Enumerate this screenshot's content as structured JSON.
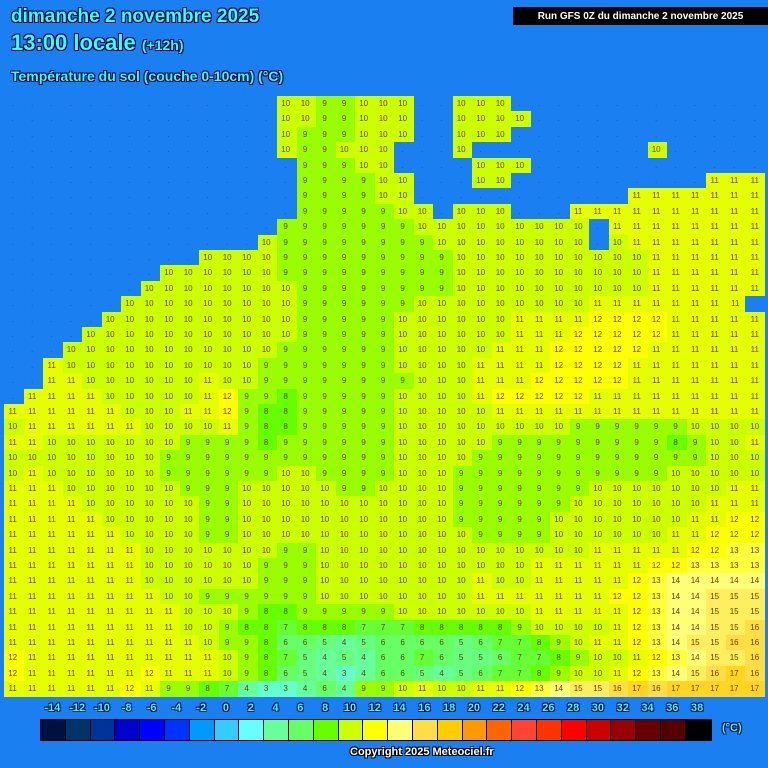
{
  "header": {
    "date": "dimanche 2 novembre 2025",
    "time": "13:00 locale",
    "lead": "(+12h)",
    "parameter": "Température du sol (couche 0-10cm) (°C)"
  },
  "run_label": "Run GFS 0Z du dimanche 2 novembre 2025",
  "legend": {
    "labels": [
      "-14",
      "-12",
      "-10",
      "-8",
      "-6",
      "-4",
      "-2",
      "0",
      "2",
      "4",
      "6",
      "8",
      "10",
      "12",
      "14",
      "16",
      "18",
      "20",
      "22",
      "24",
      "26",
      "28",
      "30",
      "32",
      "34",
      "36",
      "38"
    ],
    "colors": [
      "#001040",
      "#003366",
      "#003399",
      "#0000cc",
      "#0000ff",
      "#0033ff",
      "#0099ff",
      "#33ccff",
      "#66ffff",
      "#66ff99",
      "#66ff66",
      "#66ff00",
      "#ccff00",
      "#ffff00",
      "#ffff77",
      "#ffdd44",
      "#ffcc00",
      "#ff9900",
      "#ff6600",
      "#ff4433",
      "#ff3300",
      "#ff0000",
      "#cc0000",
      "#990000",
      "#660000",
      "#550000",
      "#000000"
    ],
    "unit": "(°C)"
  },
  "sea_color": "#1a7ff0",
  "copyright": "Copyright 2025 Meteociel.fr",
  "grid_rows": [
    ". . . . . . . . . . . . . . 10 10 9 9 10 10 10 . . 10 10 10 . . . . . . . . . . . . .",
    ". . . . . . . . . . . . . . 10 10 9 9 10 10 10 . . 10 10 10 10 . . . . . . . . . . . .",
    ". . . . . . . . . . . . . . 10 9 9 9 10 10 10 . . 10 10 10 . . . . . . . . . . . . .",
    ". . . . . . . . . . . . . . 10 9 9 10 10 10 . . . 10 . . . . . . . . . 10 . . . . .",
    ". . . . . . . . . . . . . . . 9 9 9 10 10 . . . . 10 10 10 . . . . . . . . . . . .",
    ". . . . . . . . . . . . . . . 9 9 9 9 10 10 . . . 10 10 . . . . . . . . . . 11 11 11",
    ". . . . . . . . . . . . . . . 9 9 9 9 10 10 . . . . . . . . . . . 11 11 11 11 11 11 11",
    ". . . . . . . . . . . . . . . 9 9 9 9 9 10 10 . 10 10 10 . . . 11 11 11 11 11 11 11 11 11 11",
    ". . . . . . . . . . . . . . 9 9 9 9 9 9 9 10 10 10 10 10 10 10 10 10 . 11 11 11 11 11 11 11 11",
    ". . . . . . . . . . . . . 10 9 9 9 9 9 9 9 9 10 10 10 10 10 10 10 10 . 10 11 11 11 11 11 11 11",
    ". . . . . . . . . . 10 10 10 10 9 9 9 9 9 9 9 9 9 10 10 10 10 10 10 10 10 10 10 11 11 11 11 11 11",
    ". . . . . . . . 10 10 10 10 10 10 9 9 9 9 9 9 9 9 9 10 10 10 10 10 10 10 10 10 10 11 11 11 11 11 11",
    ". . . . . . . 10 10 10 10 10 10 10 10 9 9 9 9 9 9 9 9 10 10 10 10 10 10 10 10 10 10 11 11 11 11 11 11",
    ". . . . . . 10 10 10 10 10 10 10 10 10 9 9 9 9 9 9 10 10 10 10 10 10 10 10 10 11 11 11 11 11 11 11 11",
    ". . . . . 10 10 10 10 10 10 10 10 10 10 9 9 9 9 9 10 10 10 10 10 10 11 11 11 11 12 12 12 12 11 11 11 11 11",
    ". . . . 10 10 10 10 10 10 10 10 10 10 10 9 9 9 9 9 10 10 10 10 10 10 11 11 11 12 12 12 12 12 11 11 11 11 11",
    ". . . 10 10 10 10 10 10 10 10 10 10 10 9 9 9 9 9 9 10 10 10 10 10 11 11 11 12 12 12 12 12 11 11 11 11 11 11",
    ". . 11 10 10 10 10 10 10 10 10 10 10 9 9 9 9 9 9 9 10 10 10 10 11 11 11 11 12 12 12 12 11 11 11 11 11 11 11",
    ". . 11 11 10 10 10 10 10 10 11 10 10 9 9 9 9 9 9 9 9 10 10 10 11 11 11 12 12 12 12 12 11 11 11 11 11 11 11",
    ". 11 11 11 11 10 10 10 10 10 11 12 9 9 8 9 9 9 9 9 10 10 10 10 11 12 12 12 12 12 11 11 11 11 11 11 11 11 11",
    "11 11 11 11 11 11 10 10 10 11 11 12 9 8 8 9 9 9 9 9 10 10 10 10 10 11 11 11 11 11 11 11 11 11 11 11 11 11 11",
    "10 11 11 11 11 11 11 10 10 10 10 11 9 8 8 9 9 9 9 9 10 10 10 10 10 10 10 10 10 9 9 9 9 9 9 10 10 10 10",
    "11 11 10 10 10 10 10 10 10 9 9 9 9 8 9 9 9 9 9 9 10 10 10 10 10 9 9 9 9 9 9 9 9 9 8 9 10 10 11",
    "10 10 10 10 10 10 10 10 9 9 9 9 9 9 9 9 9 9 9 9 10 10 10 10 9 9 9 9 9 9 9 9 9 9 9 9 10 10 10",
    "10 11 10 10 10 10 10 10 9 9 9 9 9 9 10 10 9 9 9 9 10 10 10 9 9 9 9 9 9 9 9 9 9 9 10 10 10 10 10",
    "11 11 11 10 10 10 10 10 10 9 9 9 10 10 10 10 10 9 9 10 10 10 10 9 9 9 9 9 9 9 10 10 10 10 10 10 10 11 11",
    "11 11 11 11 10 10 10 10 10 10 9 9 10 10 10 10 10 10 10 10 10 10 10 9 9 9 9 9 9 10 10 10 10 10 10 10 11 11 11",
    "11 11 11 11 11 10 10 10 10 10 9 9 10 10 10 10 10 10 10 10 10 10 10 9 9 9 9 9 10 10 10 10 10 10 10 11 11 12 12",
    "11 11 11 11 11 11 10 10 10 10 9 9 10 10 10 10 10 10 10 10 10 10 10 10 9 9 9 9 10 10 10 10 10 10 11 11 12 12 12",
    "11 11 11 11 11 11 11 10 10 10 10 10 10 10 9 9 10 10 10 10 10 10 10 10 10 10 10 10 10 10 11 11 11 11 11 12 12 13 13",
    "11 11 11 11 11 11 11 10 10 10 10 10 10 9 9 9 10 10 10 10 10 10 10 10 10 10 10 11 11 11 11 11 11 12 12 13 13 13 13",
    "11 11 11 11 11 11 11 10 10 10 10 10 10 9 9 9 10 10 10 10 10 10 10 10 11 10 10 11 11 11 11 11 12 13 14 14 14 14 14",
    "11 11 11 11 11 11 11 11 10 10 9 9 9 9 9 9 10 10 10 10 10 10 10 10 11 11 11 11 11 11 11 12 12 13 14 14 15 15 15",
    "11 11 11 11 11 11 11 11 11 10 10 10 9 8 8 9 9 9 9 9 10 10 10 10 10 10 10 11 11 11 11 11 12 13 14 14 15 15 15",
    "11 11 11 11 11 11 11 11 11 10 10 9 8 8 7 8 8 8 7 7 7 8 8 8 8 8 9 10 10 10 10 11 12 13 14 14 15 15 16",
    "11 11 11 11 11 11 11 11 11 11 10 9 9 8 6 6 5 4 5 6 6 6 6 5 6 7 7 8 9 10 11 11 12 13 14 15 15 16 16",
    "12 11 11 11 11 11 11 11 11 11 11 10 9 8 7 5 4 5 4 6 6 7 6 5 5 6 7 7 8 9 10 10 11 12 13 14 15 15 16",
    "12 11 11 11 11 11 11 12 11 11 11 10 9 8 6 5 4 3 4 6 6 5 4 5 6 7 7 8 9 10 10 11 12 13 14 15 16 17 16",
    "11 11 11 11 11 11 12 11 9 9 8 7 4 3 3 4 6 4 9 9 10 11 10 10 11 11 12 13 14 15 15 16 17 16 17 17 17 17 17"
  ]
}
